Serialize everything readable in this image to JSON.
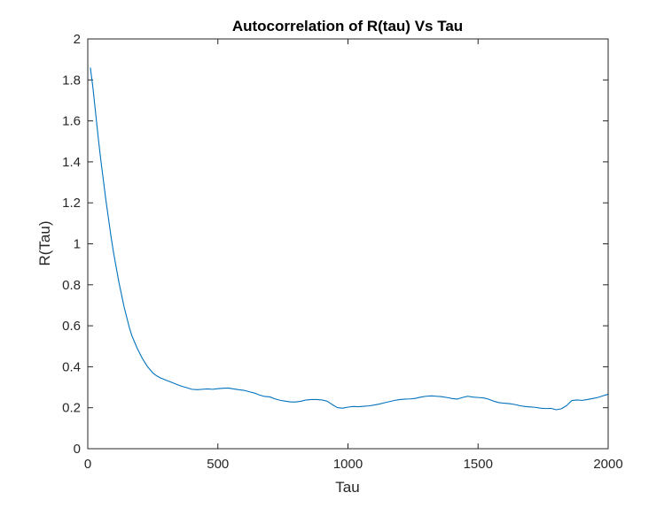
{
  "chart_data": {
    "type": "line",
    "title": "Autocorrelation of R(tau) Vs Tau",
    "xlabel": "Tau",
    "ylabel": "R(Tau)",
    "xlim": [
      0,
      2000
    ],
    "ylim": [
      0,
      2
    ],
    "xticks": [
      0,
      500,
      1000,
      1500,
      2000
    ],
    "yticks": [
      0,
      0.2,
      0.4,
      0.6,
      0.8,
      1,
      1.2,
      1.4,
      1.6,
      1.8,
      2
    ],
    "xtick_labels": [
      "0",
      "500",
      "1000",
      "1500",
      "2000"
    ],
    "ytick_labels": [
      "0",
      "0.2",
      "0.4",
      "0.6",
      "0.8",
      "1",
      "1.2",
      "1.4",
      "1.6",
      "1.8",
      "2"
    ],
    "grid": false,
    "line_color": "#0072BD",
    "axis_color": "#262626",
    "series": [
      {
        "x": [
          10,
          20,
          30,
          40,
          50,
          60,
          70,
          80,
          90,
          100,
          110,
          120,
          130,
          140,
          150,
          160,
          170,
          180,
          190,
          200,
          210,
          220,
          230,
          240,
          250,
          260,
          270,
          280,
          290,
          300,
          320,
          340,
          360,
          380,
          400,
          420,
          440,
          460,
          480,
          500,
          520,
          540,
          560,
          580,
          600,
          620,
          640,
          660,
          680,
          700,
          720,
          740,
          760,
          780,
          800,
          820,
          840,
          860,
          880,
          900,
          920,
          940,
          960,
          980,
          1000,
          1020,
          1040,
          1060,
          1080,
          1100,
          1120,
          1140,
          1160,
          1180,
          1200,
          1220,
          1240,
          1260,
          1280,
          1300,
          1320,
          1340,
          1360,
          1380,
          1400,
          1420,
          1440,
          1460,
          1480,
          1500,
          1520,
          1540,
          1560,
          1580,
          1600,
          1620,
          1640,
          1660,
          1680,
          1700,
          1720,
          1740,
          1760,
          1780,
          1800,
          1820,
          1840,
          1860,
          1880,
          1900,
          1920,
          1940,
          1960,
          1980,
          2000
        ],
        "y": [
          1.86,
          1.76,
          1.64,
          1.52,
          1.41,
          1.31,
          1.21,
          1.12,
          1.03,
          0.95,
          0.88,
          0.81,
          0.75,
          0.69,
          0.64,
          0.59,
          0.55,
          0.52,
          0.49,
          0.465,
          0.44,
          0.42,
          0.4,
          0.385,
          0.37,
          0.36,
          0.352,
          0.345,
          0.34,
          0.335,
          0.325,
          0.315,
          0.305,
          0.298,
          0.29,
          0.288,
          0.29,
          0.292,
          0.29,
          0.293,
          0.295,
          0.296,
          0.292,
          0.288,
          0.285,
          0.278,
          0.272,
          0.262,
          0.255,
          0.253,
          0.243,
          0.236,
          0.232,
          0.228,
          0.228,
          0.232,
          0.238,
          0.24,
          0.24,
          0.238,
          0.232,
          0.215,
          0.2,
          0.198,
          0.203,
          0.206,
          0.205,
          0.207,
          0.209,
          0.213,
          0.218,
          0.224,
          0.23,
          0.236,
          0.24,
          0.242,
          0.243,
          0.246,
          0.252,
          0.256,
          0.258,
          0.256,
          0.254,
          0.25,
          0.245,
          0.242,
          0.25,
          0.256,
          0.252,
          0.25,
          0.248,
          0.242,
          0.232,
          0.225,
          0.222,
          0.22,
          0.216,
          0.21,
          0.206,
          0.204,
          0.202,
          0.198,
          0.196,
          0.197,
          0.19,
          0.195,
          0.21,
          0.235,
          0.238,
          0.236,
          0.24,
          0.245,
          0.25,
          0.258,
          0.266
        ]
      }
    ]
  }
}
